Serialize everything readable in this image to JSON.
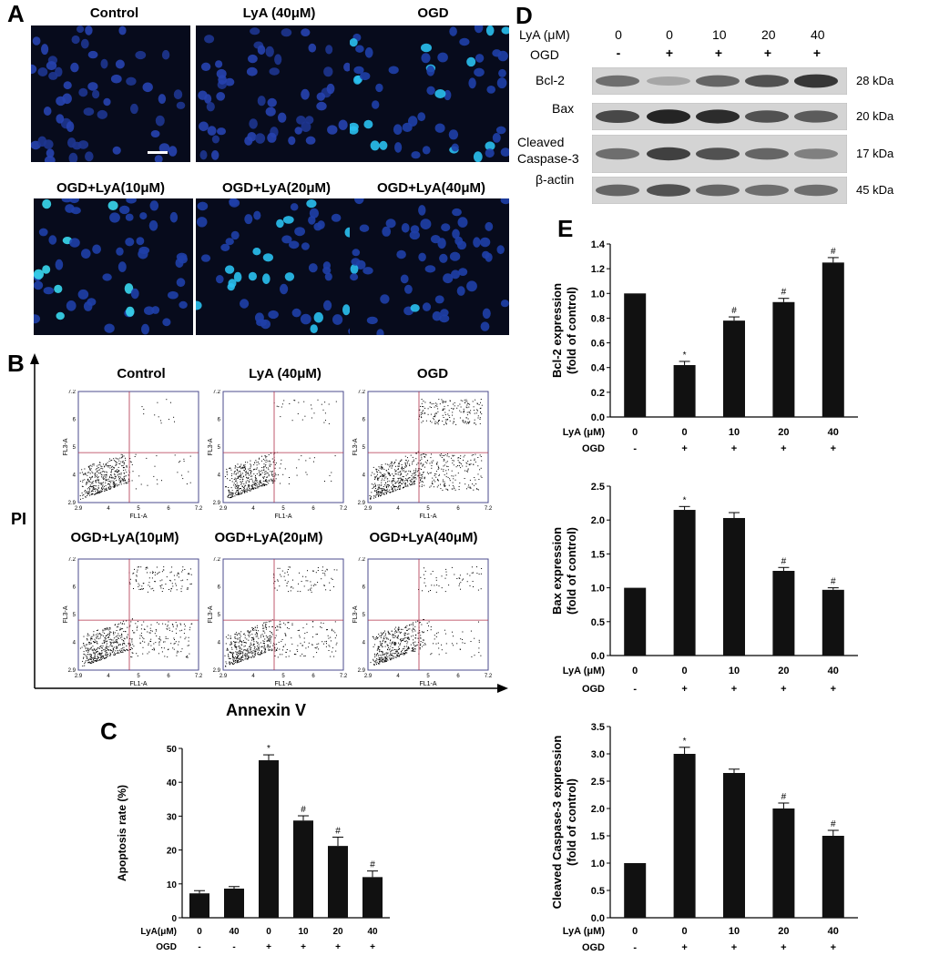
{
  "panels": {
    "a": "A",
    "b": "B",
    "c": "C",
    "d": "D",
    "e": "E"
  },
  "panel_a": {
    "titles": [
      "Control",
      "LyA  (40μM)",
      "OGD",
      "OGD+LyA(10μM)",
      "OGD+LyA(20μM)",
      "OGD+LyA(40μM)"
    ]
  },
  "panel_b": {
    "titles": [
      "Control",
      "LyA  (40μM)",
      "OGD",
      "OGD+LyA(10μM)",
      "OGD+LyA(20μM)",
      "OGD+LyA(40μM)"
    ],
    "y_axis_label": "PI",
    "x_axis_label": "Annexin V",
    "plot_xlabel": "FL1-A",
    "plot_ylabel": "FL3-A",
    "tick_labels": [
      "2.9",
      "4",
      "5",
      "6",
      "7.2"
    ]
  },
  "panel_d": {
    "header_labels": [
      "LyA (μM)",
      "OGD"
    ],
    "lya_values": [
      "0",
      "0",
      "10",
      "20",
      "40"
    ],
    "ogd_values": [
      "-",
      "+",
      "+",
      "+",
      "+"
    ],
    "bands": [
      {
        "name": "Bcl-2",
        "kda": "28 kDa"
      },
      {
        "name": "Bax",
        "kda": "20 kDa"
      },
      {
        "name": "Cleaved\nCaspase-3",
        "kda": "17 kDa"
      },
      {
        "name": "β-actin",
        "kda": "45 kDa"
      }
    ]
  },
  "chart_data": [
    {
      "id": "apoptosis",
      "type": "bar",
      "ylabel": "Apoptosis rate (%)",
      "ylim": [
        0,
        50
      ],
      "yticks": [
        0,
        10,
        20,
        30,
        40,
        50
      ],
      "row_labels": [
        "LyA(μM)",
        "OGD"
      ],
      "lya": [
        "0",
        "40",
        "0",
        "10",
        "20",
        "40"
      ],
      "ogd": [
        "-",
        "-",
        "+",
        "+",
        "+",
        "+"
      ],
      "values": [
        7.2,
        8.6,
        46.5,
        28.7,
        21.2,
        12.0
      ],
      "errors": [
        0.8,
        0.6,
        1.6,
        1.4,
        2.6,
        1.8
      ],
      "markers": [
        "",
        "",
        "*",
        "#",
        "#",
        "#"
      ],
      "color": "#111111"
    },
    {
      "id": "bcl2",
      "type": "bar",
      "ylabel": "Bcl-2 expression\n(fold of control)",
      "ylim": [
        0,
        1.4
      ],
      "yticks": [
        0.0,
        0.2,
        0.4,
        0.6,
        0.8,
        1.0,
        1.2,
        1.4
      ],
      "row_labels": [
        "LyA (μM)",
        "OGD"
      ],
      "lya": [
        "0",
        "0",
        "10",
        "20",
        "40"
      ],
      "ogd": [
        "-",
        "+",
        "+",
        "+",
        "+"
      ],
      "values": [
        1.0,
        0.42,
        0.78,
        0.93,
        1.25
      ],
      "errors": [
        0.0,
        0.03,
        0.03,
        0.03,
        0.04
      ],
      "markers": [
        "",
        "*",
        "#",
        "#",
        "#"
      ],
      "color": "#111111"
    },
    {
      "id": "bax",
      "type": "bar",
      "ylabel": "Bax expression\n(fold of control)",
      "ylim": [
        0,
        2.5
      ],
      "yticks": [
        0.0,
        0.5,
        1.0,
        1.5,
        2.0,
        2.5
      ],
      "row_labels": [
        "LyA (μM)",
        "OGD"
      ],
      "lya": [
        "0",
        "0",
        "10",
        "20",
        "40"
      ],
      "ogd": [
        "-",
        "+",
        "+",
        "+",
        "+"
      ],
      "values": [
        1.0,
        2.15,
        2.03,
        1.25,
        0.97
      ],
      "errors": [
        0.0,
        0.05,
        0.08,
        0.05,
        0.03
      ],
      "markers": [
        "",
        "*",
        "",
        "#",
        "#"
      ],
      "color": "#111111"
    },
    {
      "id": "caspase",
      "type": "bar",
      "ylabel": "Cleaved Caspase-3 expression\n(fold of control)",
      "ylim": [
        0,
        3.5
      ],
      "yticks": [
        0.0,
        0.5,
        1.0,
        1.5,
        2.0,
        2.5,
        3.0,
        3.5
      ],
      "row_labels": [
        "LyA (μM)",
        "OGD"
      ],
      "lya": [
        "0",
        "0",
        "10",
        "20",
        "40"
      ],
      "ogd": [
        "-",
        "+",
        "+",
        "+",
        "+"
      ],
      "values": [
        1.0,
        3.0,
        2.65,
        2.0,
        1.5
      ],
      "errors": [
        0.0,
        0.12,
        0.07,
        0.1,
        0.1
      ],
      "markers": [
        "",
        "*",
        "",
        "#",
        "#"
      ],
      "color": "#111111"
    }
  ]
}
